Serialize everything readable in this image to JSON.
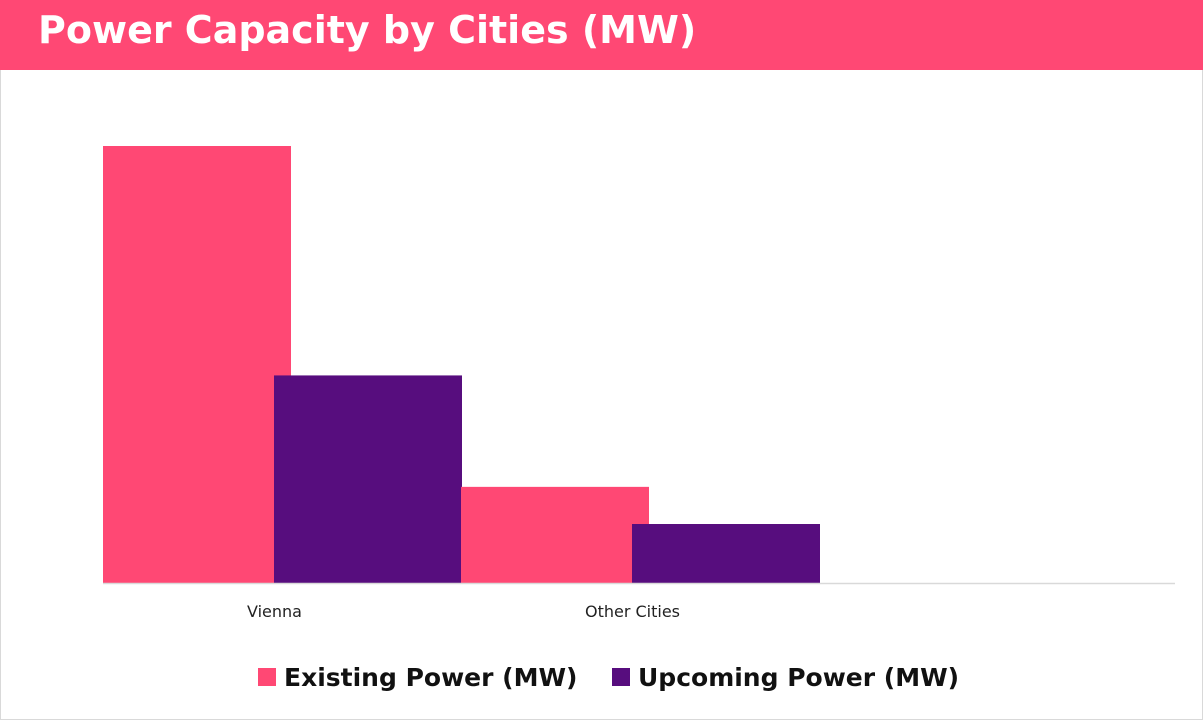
{
  "header": {
    "title": "Power Capacity by Cities (MW)"
  },
  "colors": {
    "title_bar": "#ff4874",
    "existing": "#ff4874",
    "upcoming": "#570d7e"
  },
  "chart_data": {
    "type": "bar",
    "title": "Power Capacity by Cities (MW)",
    "categories": [
      "Vienna",
      "Other Cities"
    ],
    "series": [
      {
        "name": "Existing Power (MW)",
        "values": [
          100,
          22
        ]
      },
      {
        "name": "Upcoming Power (MW)",
        "values": [
          47.5,
          13.5
        ]
      }
    ],
    "xlabel": "",
    "ylabel": "",
    "ylim": [
      0,
      100
    ],
    "grid": false,
    "legend_position": "bottom"
  }
}
